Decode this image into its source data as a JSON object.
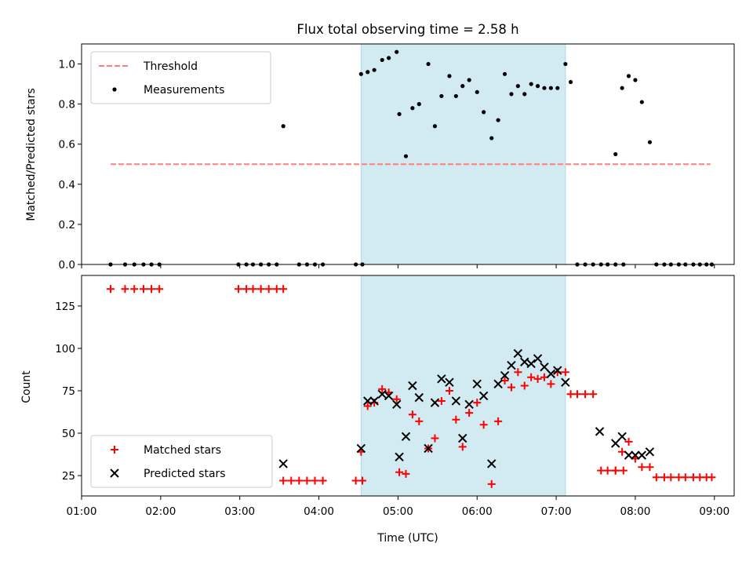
{
  "chart_data": {
    "type": "scatter",
    "title": "Flux total observing time = 2.58 h",
    "shaded_region_x": [
      "04:32",
      "07:07"
    ],
    "shade_color": "#add8e6",
    "xlim": [
      "01:00",
      "09:15"
    ],
    "xticks": [
      "01:00",
      "02:00",
      "03:00",
      "04:00",
      "05:00",
      "06:00",
      "07:00",
      "08:00",
      "09:00"
    ],
    "xlabel": "Time (UTC)",
    "panels": [
      {
        "ylabel": "Matched/Predicted stars",
        "ylim": [
          0,
          1.1
        ],
        "yticks": [
          "0.0",
          "0.2",
          "0.4",
          "0.6",
          "0.8",
          "1.0"
        ],
        "yticks_values": [
          0,
          0.2,
          0.4,
          0.6,
          0.8,
          1.0
        ],
        "legend": {
          "placement": "upper left",
          "entries": [
            "Threshold",
            "Measurements"
          ]
        },
        "series": [
          {
            "name": "Threshold",
            "kind": "dashed-line",
            "color": "#ff7f7f",
            "x": [
              "01:22",
              "08:57"
            ],
            "y": [
              0.5,
              0.5
            ]
          },
          {
            "name": "Measurements",
            "kind": "scatter",
            "marker": "dot",
            "color": "#000000",
            "x": [
              "01:22",
              "01:33",
              "01:40",
              "01:47",
              "01:53",
              "01:59",
              "02:59",
              "03:05",
              "03:10",
              "03:16",
              "03:22",
              "03:28",
              "03:33",
              "03:45",
              "03:51",
              "03:57",
              "04:03",
              "04:28",
              "04:33",
              "04:32",
              "04:37",
              "04:42",
              "04:48",
              "04:53",
              "04:59",
              "05:01",
              "05:06",
              "05:11",
              "05:16",
              "05:23",
              "05:28",
              "05:33",
              "05:39",
              "05:44",
              "05:49",
              "05:54",
              "06:00",
              "06:05",
              "06:11",
              "06:16",
              "06:21",
              "06:26",
              "06:31",
              "06:36",
              "06:41",
              "06:46",
              "06:51",
              "06:56",
              "07:01",
              "07:07",
              "07:11",
              "07:16",
              "07:22",
              "07:28",
              "07:34",
              "07:39",
              "07:45",
              "07:51",
              "07:45",
              "07:50",
              "07:55",
              "08:00",
              "08:05",
              "08:11",
              "08:16",
              "08:22",
              "08:27",
              "08:33",
              "08:38",
              "08:44",
              "08:49",
              "08:54",
              "08:58"
            ],
            "y": [
              0,
              0,
              0,
              0,
              0,
              0,
              0,
              0,
              0,
              0,
              0,
              0,
              0.69,
              0,
              0,
              0,
              0,
              0,
              0,
              0.95,
              0.96,
              0.97,
              1.02,
              1.03,
              1.06,
              0.75,
              0.54,
              0.78,
              0.8,
              1.0,
              0.69,
              0.84,
              0.94,
              0.84,
              0.89,
              0.92,
              0.86,
              0.76,
              0.63,
              0.72,
              0.95,
              0.85,
              0.89,
              0.85,
              0.9,
              0.89,
              0.88,
              0.88,
              0.88,
              1.0,
              0.91,
              0,
              0,
              0,
              0,
              0,
              0,
              0,
              0.55,
              0.88,
              0.94,
              0.92,
              0.81,
              0.61,
              0,
              0,
              0,
              0,
              0,
              0,
              0,
              0,
              0
            ]
          }
        ]
      },
      {
        "ylabel": "Count",
        "ylim": [
          13,
          143
        ],
        "yticks": [
          "25",
          "50",
          "75",
          "100",
          "125"
        ],
        "yticks_values": [
          25,
          50,
          75,
          100,
          125
        ],
        "legend": {
          "placement": "lower left",
          "entries": [
            "Matched stars",
            "Predicted stars"
          ]
        },
        "series": [
          {
            "name": "Matched stars",
            "kind": "scatter",
            "marker": "plus",
            "color": "#ff0000",
            "x": [
              "01:22",
              "01:33",
              "01:40",
              "01:47",
              "01:53",
              "01:59",
              "02:59",
              "03:05",
              "03:10",
              "03:16",
              "03:22",
              "03:28",
              "03:33",
              "03:33",
              "03:39",
              "03:45",
              "03:51",
              "03:57",
              "04:03",
              "04:28",
              "04:33",
              "04:32",
              "04:37",
              "04:42",
              "04:48",
              "04:53",
              "04:59",
              "05:01",
              "05:06",
              "05:11",
              "05:16",
              "05:23",
              "05:28",
              "05:33",
              "05:39",
              "05:44",
              "05:49",
              "05:54",
              "06:00",
              "06:05",
              "06:11",
              "06:16",
              "06:21",
              "06:26",
              "06:31",
              "06:36",
              "06:41",
              "06:46",
              "06:51",
              "06:56",
              "07:01",
              "07:07",
              "07:11",
              "07:16",
              "07:22",
              "07:28",
              "07:34",
              "07:39",
              "07:45",
              "07:51",
              "07:45",
              "07:50",
              "07:55",
              "08:00",
              "08:05",
              "08:11",
              "08:16",
              "08:22",
              "08:27",
              "08:33",
              "08:38",
              "08:44",
              "08:49",
              "08:54",
              "08:58"
            ],
            "y": [
              135,
              135,
              135,
              135,
              135,
              135,
              135,
              135,
              135,
              135,
              135,
              135,
              135,
              22,
              22,
              22,
              22,
              22,
              22,
              22,
              22,
              39,
              66,
              68,
              76,
              74,
              70,
              27,
              26,
              61,
              57,
              41,
              47,
              69,
              75,
              58,
              42,
              62,
              68,
              55,
              20,
              57,
              81,
              77,
              86,
              78,
              83,
              82,
              83,
              79,
              86,
              86,
              73,
              73,
              73,
              73,
              28,
              28,
              28,
              28,
              28,
              39,
              45,
              35,
              30,
              30,
              24,
              24,
              24,
              24,
              24,
              24,
              24,
              24,
              24
            ]
          },
          {
            "name": "Predicted stars",
            "kind": "scatter",
            "marker": "x",
            "color": "#000000",
            "x": [
              "03:33",
              "04:32",
              "04:37",
              "04:42",
              "04:48",
              "04:53",
              "04:59",
              "05:01",
              "05:06",
              "05:11",
              "05:16",
              "05:23",
              "05:28",
              "05:33",
              "05:39",
              "05:44",
              "05:49",
              "05:54",
              "06:00",
              "06:05",
              "06:11",
              "06:16",
              "06:21",
              "06:26",
              "06:31",
              "06:36",
              "06:41",
              "06:46",
              "06:51",
              "06:56",
              "07:01",
              "07:07",
              "07:33",
              "07:45",
              "07:50",
              "07:55",
              "08:00",
              "08:05",
              "08:11"
            ],
            "y": [
              32,
              41,
              69,
              69,
              73,
              72,
              67,
              36,
              48,
              78,
              71,
              41,
              68,
              82,
              80,
              69,
              47,
              67,
              79,
              72,
              32,
              79,
              84,
              90,
              97,
              92,
              91,
              94,
              89,
              85,
              87,
              80,
              51,
              44,
              48,
              37,
              37,
              37,
              39
            ]
          }
        ]
      }
    ]
  }
}
